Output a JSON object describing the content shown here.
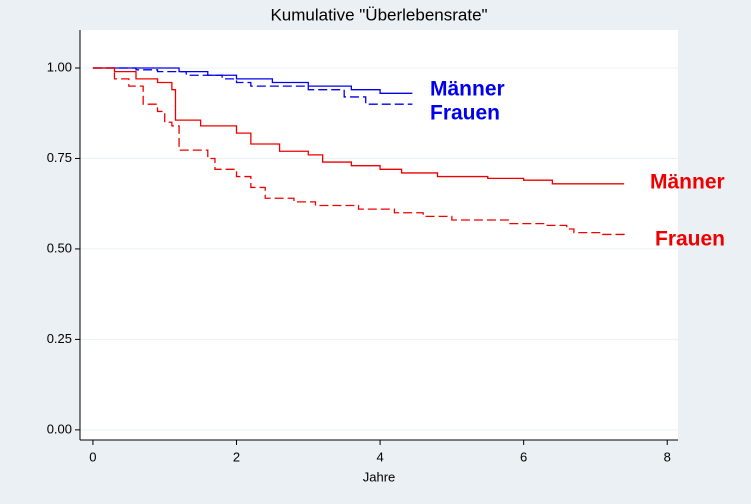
{
  "chart_data": {
    "type": "line",
    "step": true,
    "title": "Kumulative \"Überlebensrate\"",
    "x_label": "Jahre",
    "xlim": [
      -0.18,
      8.15
    ],
    "xticks": [
      0,
      2,
      4,
      6,
      8
    ],
    "ylim": [
      -0.028,
      1.105
    ],
    "yticks": [
      {
        "value": 0,
        "label": "0.00"
      },
      {
        "value": 0.25,
        "label": "0.25"
      },
      {
        "value": 0.5,
        "label": "0.50"
      },
      {
        "value": 0.75,
        "label": "0.75"
      },
      {
        "value": 1,
        "label": "1.00"
      }
    ],
    "grid": true,
    "series": [
      {
        "name": "Männer",
        "color": "#0000ee",
        "dash": false,
        "x": [
          0,
          1.2,
          1.6,
          2.0,
          2.5,
          3.0,
          3.6,
          4.0,
          4.45
        ],
        "values": [
          1.0,
          0.99,
          0.98,
          0.97,
          0.96,
          0.95,
          0.94,
          0.93,
          0.93
        ]
      },
      {
        "name": "Frauen",
        "color": "#0000ee",
        "dash": true,
        "x": [
          0,
          0.6,
          0.9,
          1.3,
          1.8,
          2.0,
          2.2,
          3.0,
          3.5,
          3.8,
          4.45
        ],
        "values": [
          1.0,
          0.995,
          0.99,
          0.98,
          0.97,
          0.96,
          0.95,
          0.94,
          0.92,
          0.9,
          0.9
        ]
      },
      {
        "name": "Männer",
        "color": "#ee0000",
        "dash": false,
        "x": [
          0,
          0.3,
          0.6,
          0.9,
          1.1,
          1.15,
          1.5,
          2.0,
          2.2,
          2.6,
          3.0,
          3.2,
          3.6,
          4.0,
          4.3,
          4.8,
          5.5,
          6.0,
          6.4,
          7.4
        ],
        "values": [
          1.0,
          0.99,
          0.97,
          0.96,
          0.94,
          0.856,
          0.84,
          0.82,
          0.79,
          0.77,
          0.76,
          0.74,
          0.73,
          0.72,
          0.71,
          0.7,
          0.695,
          0.69,
          0.68,
          0.68
        ]
      },
      {
        "name": "Frauen",
        "color": "#ee0000",
        "dash": true,
        "x": [
          0,
          0.3,
          0.5,
          0.7,
          0.9,
          1.0,
          1.1,
          1.2,
          1.6,
          1.7,
          2.0,
          2.2,
          2.4,
          2.8,
          3.1,
          3.7,
          4.2,
          4.6,
          5.0,
          5.8,
          6.3,
          6.6,
          6.7,
          7.1,
          7.4
        ],
        "values": [
          1.0,
          0.97,
          0.95,
          0.9,
          0.88,
          0.85,
          0.84,
          0.773,
          0.75,
          0.72,
          0.7,
          0.67,
          0.64,
          0.63,
          0.62,
          0.61,
          0.6,
          0.59,
          0.58,
          0.57,
          0.565,
          0.555,
          0.545,
          0.54,
          0.535
        ]
      }
    ]
  }
}
